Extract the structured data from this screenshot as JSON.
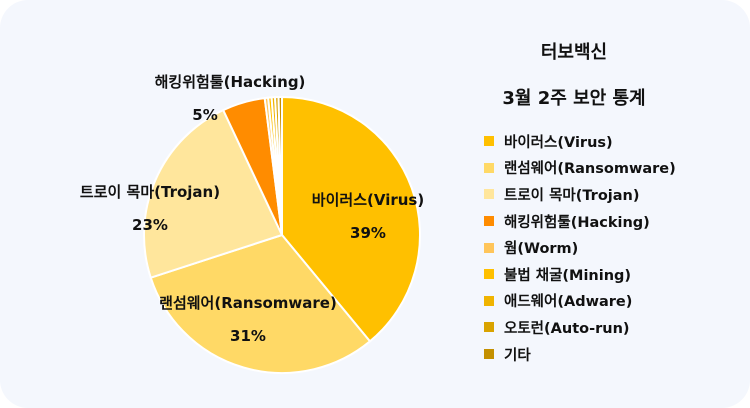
{
  "chart_data": {
    "type": "pie",
    "title": "터보백신",
    "subtitle": "3월 2주 보안 통계",
    "legend_position": "right",
    "start": "top-clockwise",
    "slices": [
      {
        "name": "바이러스(Virus)",
        "value": 39,
        "label": "39%",
        "color": "#FFC000"
      },
      {
        "name": "랜섬웨어(Ransomware)",
        "value": 31,
        "label": "31%",
        "color": "#FFD966"
      },
      {
        "name": "트로이 목마(Trojan)",
        "value": 23,
        "label": "23%",
        "color": "#FFE69C"
      },
      {
        "name": "해킹위험툴(Hacking)",
        "value": 5,
        "label": "5%",
        "color": "#FF8C00"
      },
      {
        "name": "웜(Worm)",
        "value": 0.4,
        "color": "#FFC55A"
      },
      {
        "name": "불법 채굴(Mining)",
        "value": 0.4,
        "color": "#FFC000"
      },
      {
        "name": "애드웨어(Adware)",
        "value": 0.4,
        "color": "#F0B400"
      },
      {
        "name": "오토런(Auto-run)",
        "value": 0.4,
        "color": "#D9A300"
      },
      {
        "name": "기타",
        "value": 0.4,
        "color": "#C49000"
      }
    ]
  }
}
